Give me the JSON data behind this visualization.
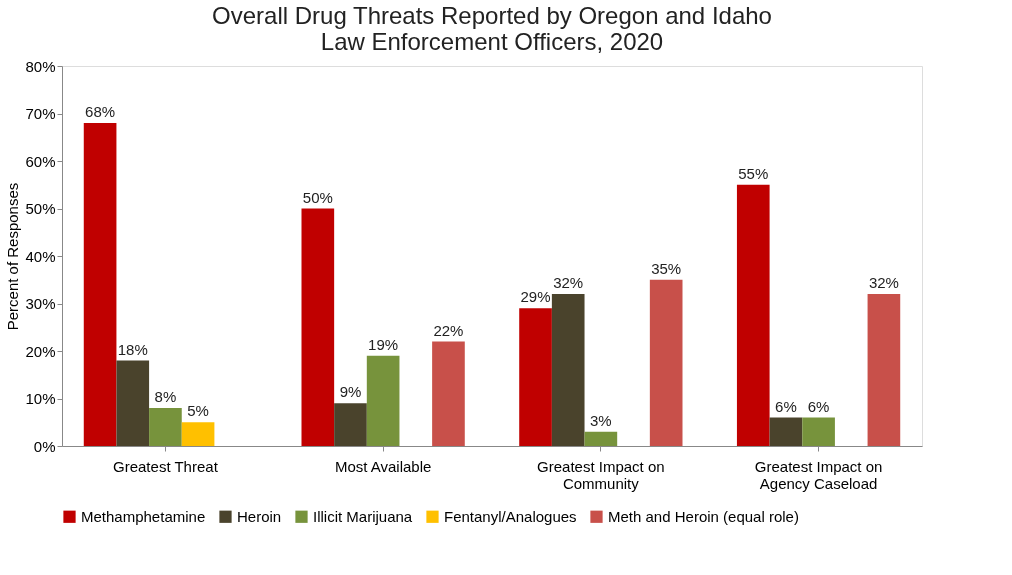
{
  "chart_data": {
    "type": "bar",
    "title": "Overall Drug Threats Reported by Oregon and Idaho\nLaw Enforcement Officers, 2020",
    "ylabel": "Percent of Responses",
    "categories": [
      "Greatest Threat",
      "Most Available",
      "Greatest Impact on Community",
      "Greatest Impact on Agency Caseload"
    ],
    "series": [
      {
        "name": "Methamphetamine",
        "color": "#c00000",
        "values": [
          68,
          50,
          29,
          55
        ],
        "value_labels": [
          "68%",
          "50%",
          "29%",
          "55%"
        ]
      },
      {
        "name": "Heroin",
        "color": "#4a432c",
        "values": [
          18,
          9,
          32,
          6
        ],
        "value_labels": [
          "18%",
          "9%",
          "32%",
          "6%"
        ]
      },
      {
        "name": "Illicit Marijuana",
        "color": "#77933c",
        "values": [
          8,
          19,
          3,
          6
        ],
        "value_labels": [
          "8%",
          "19%",
          "3%",
          "6%"
        ]
      },
      {
        "name": "Fentanyl/Analogues",
        "color": "#ffc000",
        "values": [
          5,
          null,
          null,
          null
        ],
        "value_labels": [
          "5%",
          null,
          null,
          null
        ]
      },
      {
        "name": "Meth and Heroin (equal role)",
        "color": "#c8504a",
        "values": [
          null,
          22,
          35,
          32
        ],
        "value_labels": [
          null,
          "22%",
          "35%",
          "32%"
        ]
      }
    ],
    "ylim": [
      0,
      80
    ],
    "yticks": [
      {
        "value": 0,
        "label": "0%"
      },
      {
        "value": 10,
        "label": "10%"
      },
      {
        "value": 20,
        "label": "20%"
      },
      {
        "value": 30,
        "label": "30%"
      },
      {
        "value": 40,
        "label": "40%"
      },
      {
        "value": 50,
        "label": "50%"
      },
      {
        "value": 60,
        "label": "60%"
      },
      {
        "value": 70,
        "label": "70%"
      },
      {
        "value": 80,
        "label": "80%"
      }
    ],
    "grid": false,
    "legend": "bottom"
  }
}
